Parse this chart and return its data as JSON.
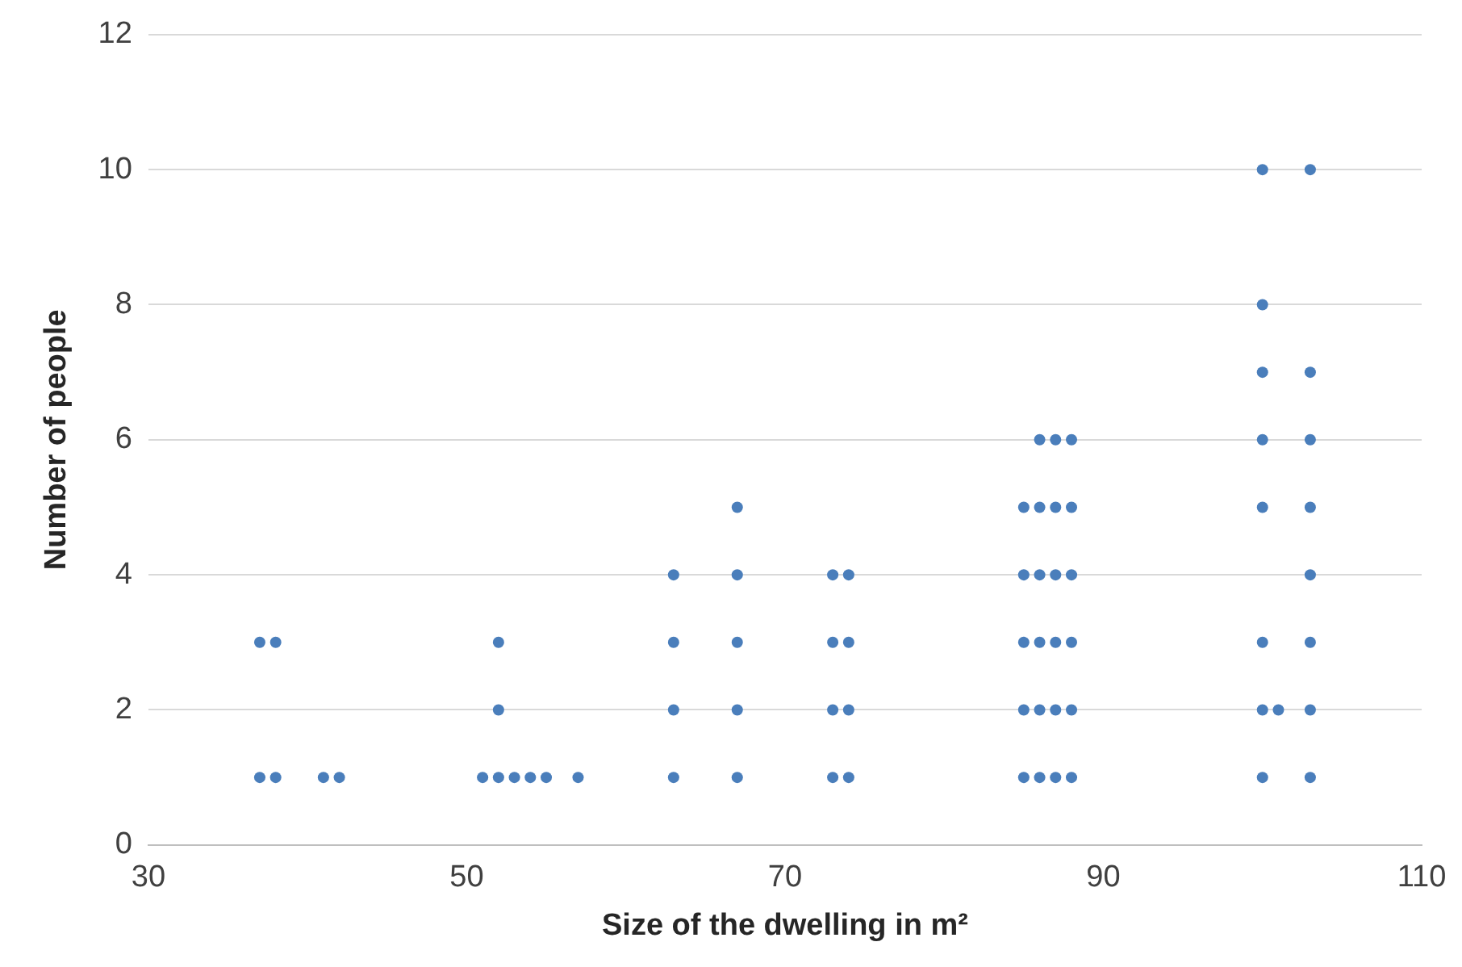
{
  "chart_data": {
    "type": "scatter",
    "xlabel": "Size of the dwelling in m²",
    "ylabel": "Number of people",
    "x": [
      37,
      37,
      38,
      38,
      41,
      42,
      51,
      52,
      52,
      52,
      53,
      54,
      55,
      57,
      63,
      63,
      63,
      63,
      67,
      67,
      67,
      67,
      67,
      73,
      73,
      73,
      73,
      74,
      74,
      74,
      74,
      85,
      85,
      85,
      85,
      85,
      86,
      86,
      86,
      86,
      86,
      86,
      87,
      87,
      87,
      87,
      87,
      87,
      88,
      88,
      88,
      88,
      88,
      88,
      100,
      100,
      100,
      100,
      100,
      100,
      100,
      100,
      101,
      103,
      103,
      103,
      103,
      103,
      103,
      103,
      103
    ],
    "values": [
      1,
      3,
      1,
      3,
      1,
      1,
      1,
      1,
      2,
      3,
      1,
      1,
      1,
      1,
      1,
      2,
      3,
      4,
      1,
      2,
      3,
      4,
      5,
      1,
      2,
      3,
      4,
      1,
      2,
      3,
      4,
      1,
      2,
      3,
      4,
      5,
      1,
      2,
      3,
      4,
      5,
      6,
      1,
      2,
      3,
      4,
      5,
      6,
      1,
      2,
      3,
      4,
      5,
      6,
      1,
      2,
      3,
      5,
      6,
      7,
      8,
      10,
      2,
      1,
      2,
      3,
      4,
      5,
      6,
      7,
      10
    ],
    "color": "#4a7ebb",
    "marker": "circle",
    "xlim": [
      30,
      110
    ],
    "xticks": [
      30,
      50,
      70,
      90,
      110
    ],
    "ylim": [
      0,
      12
    ],
    "yticks": [
      0,
      2,
      4,
      6,
      8,
      10,
      12
    ],
    "grid": "y",
    "legend": false
  }
}
